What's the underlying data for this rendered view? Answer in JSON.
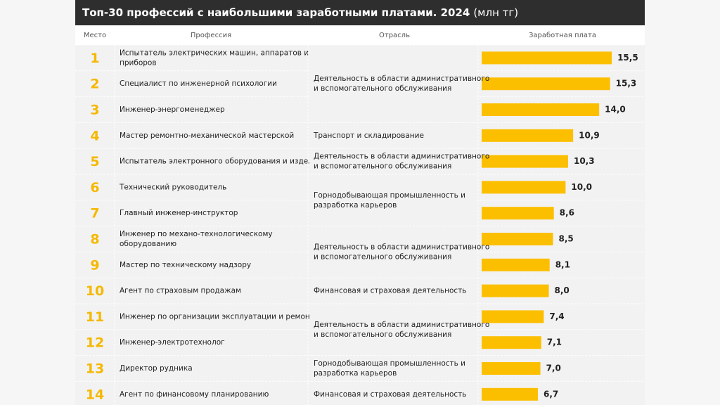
{
  "chart_data": {
    "type": "bar",
    "orientation": "horizontal",
    "title": "Топ-30 профессий с наибольшими заработными платами. 2024",
    "unit": "(млн тг)",
    "columns": [
      "Место",
      "Профессия",
      "Отрасль",
      "Заработная плата"
    ],
    "ranks": [
      1,
      2,
      3,
      4,
      5,
      6,
      7,
      8,
      9,
      10,
      11,
      12,
      13,
      14
    ],
    "categories": [
      "Испытатель электрических машин, аппаратов и приборов",
      "Специалист по инженерной психологии",
      "Инженер-энергоменеджер",
      "Мастер ремонтно-механической мастерской",
      "Испытатель электронного оборудования и изделий",
      "Технический руководитель",
      "Главный инженер-инструктор",
      "Инженер по механо-технологическому оборудованию",
      "Мастер по техническому надзору",
      "Агент по страховым продажам",
      "Инженер по организации эксплуатации и ремонту",
      "Инженер-электротехнолог",
      "Директор рудника",
      "Агент по финансовому планированию"
    ],
    "industries": [
      "Деятельность в области административного и вспомогательного обслуживания",
      null,
      null,
      "Транспорт и складирование",
      "Деятельность в области административного и вспомогательного обслуживания",
      "Горнодобывающая промышленность и разработка карьеров",
      null,
      "Деятельность в области административного и вспомогательного обслуживания",
      null,
      "Финансовая и страховая деятельность",
      "Деятельность в области административного и вспомогательного обслуживания",
      null,
      "Горнодобывающая промышленность и разработка карьеров",
      "Финансовая и страховая деятельность"
    ],
    "values": [
      15.5,
      15.3,
      14.0,
      10.9,
      10.3,
      10.0,
      8.6,
      8.5,
      8.1,
      8.0,
      7.4,
      7.1,
      7.0,
      6.7
    ],
    "value_labels": [
      "15,5",
      "15,3",
      "14,0",
      "10,9",
      "10,3",
      "10,0",
      "8,6",
      "8,5",
      "8,1",
      "8,0",
      "7,4",
      "7,1",
      "7,0",
      "6,7"
    ],
    "color": "#fcbf00"
  }
}
